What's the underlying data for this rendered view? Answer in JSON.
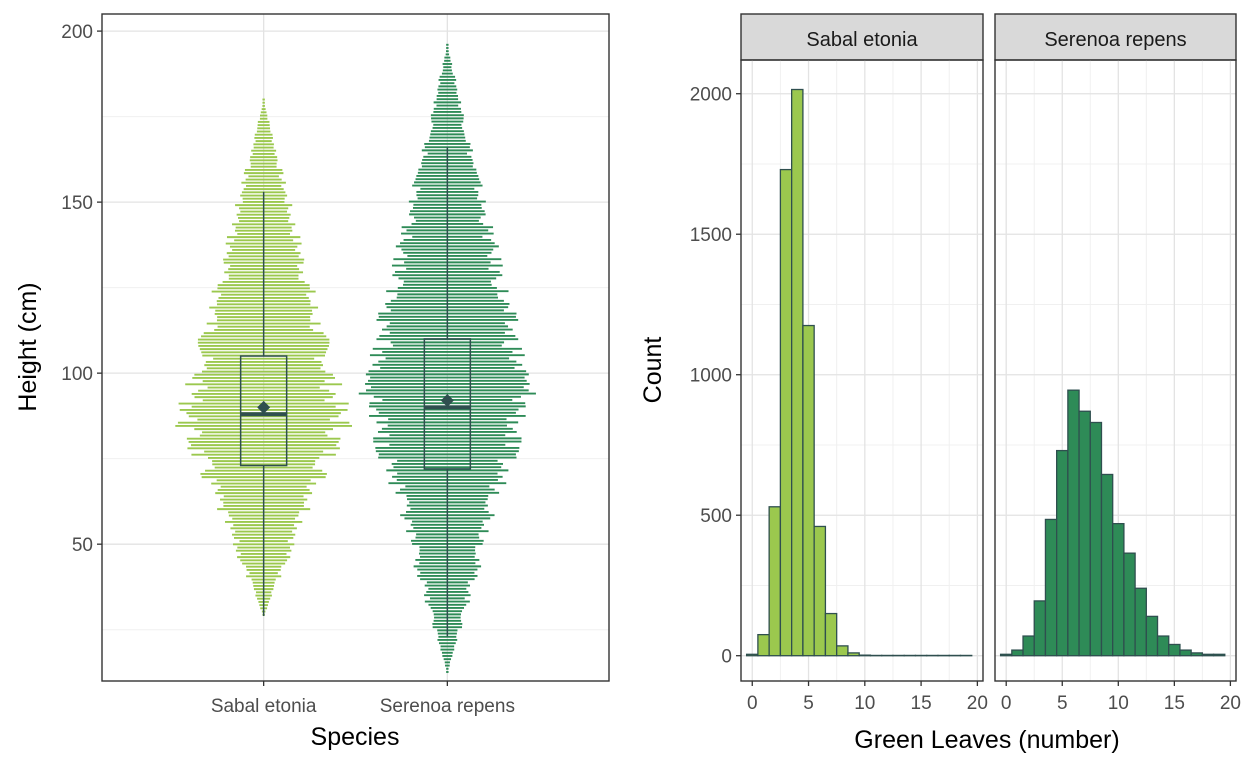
{
  "chart_data": [
    {
      "type": "beeswarm-boxplot",
      "xlabel": "Species",
      "ylabel": "Height (cm)",
      "ylim": [
        10,
        205
      ],
      "yticks": [
        50,
        100,
        150,
        200
      ],
      "ytick_labels": [
        "50",
        "100",
        "150",
        "200"
      ],
      "categories": [
        "Sabal etonia",
        "Serenoa repens"
      ],
      "colors": [
        "#9bc84e",
        "#2e8b57"
      ],
      "box_color": "#2f4f4f",
      "grid": true,
      "series": [
        {
          "category": "Sabal etonia",
          "min": 29,
          "q1": 73,
          "median": 88,
          "mean": 90,
          "q3": 105,
          "max": 153,
          "range": [
            29,
            180
          ],
          "peak": 85,
          "peak_halfwidth_ratio": 0.85
        },
        {
          "category": "Serenoa repens",
          "min": 23,
          "q1": 72,
          "median": 90,
          "mean": 92,
          "q3": 110,
          "max": 166,
          "range": [
            12,
            196
          ],
          "peak": 94,
          "peak_halfwidth_ratio": 0.85
        }
      ]
    },
    {
      "type": "histogram-facets",
      "xlabel": "Green Leaves (number)",
      "ylabel": "Count",
      "xlim": [
        -1,
        20.5
      ],
      "ylim": [
        -90,
        2120
      ],
      "xticks": [
        0,
        5,
        10,
        15,
        20
      ],
      "xtick_labels": [
        "0",
        "5",
        "10",
        "15",
        "20"
      ],
      "yticks": [
        0,
        500,
        1000,
        1500,
        2000
      ],
      "ytick_labels": [
        "0",
        "500",
        "1000",
        "1500",
        "2000"
      ],
      "bin_width": 1,
      "bar_outline": "#2f4f4f",
      "grid": true,
      "facets": [
        {
          "name": "Sabal etonia",
          "color": "#9bc84e",
          "bins": [
            0,
            1,
            2,
            3,
            4,
            5,
            6,
            7,
            8,
            9,
            10,
            11,
            12,
            13,
            14,
            15,
            16,
            17,
            18,
            19
          ],
          "counts": [
            5,
            75,
            530,
            1730,
            2015,
            1175,
            460,
            150,
            35,
            10,
            2,
            1,
            1,
            1,
            1,
            1,
            1,
            1,
            1,
            1
          ]
        },
        {
          "name": "Serenoa repens",
          "color": "#2e8b57",
          "bins": [
            0,
            1,
            2,
            3,
            4,
            5,
            6,
            7,
            8,
            9,
            10,
            11,
            12,
            13,
            14,
            15,
            16,
            17,
            18,
            19
          ],
          "counts": [
            5,
            20,
            70,
            195,
            485,
            730,
            945,
            870,
            830,
            645,
            470,
            365,
            240,
            140,
            70,
            40,
            20,
            10,
            5,
            5
          ]
        }
      ]
    }
  ]
}
